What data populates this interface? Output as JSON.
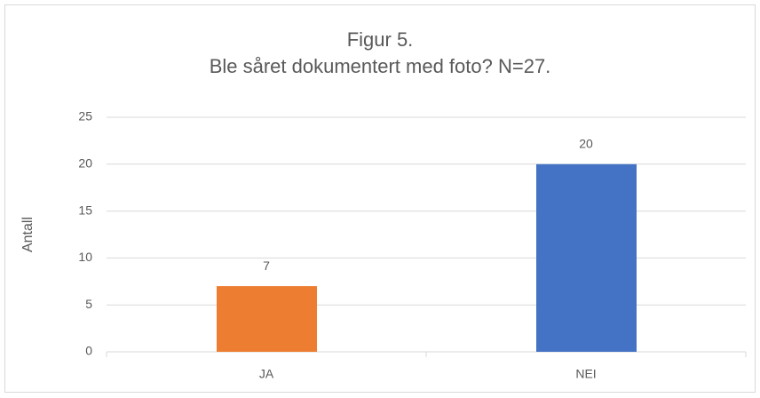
{
  "chart_data": {
    "type": "bar",
    "title": "Figur 5.",
    "subtitle": "Ble såret dokumentert med foto? N=27.",
    "y_label": "Antall",
    "categories": [
      "JA",
      "NEI"
    ],
    "values": [
      7,
      20
    ],
    "colors": [
      "#ed7d31",
      "#4472c4"
    ],
    "ylim": [
      0,
      25
    ],
    "yticks": [
      0,
      5,
      10,
      15,
      20,
      25
    ],
    "grid": true
  }
}
